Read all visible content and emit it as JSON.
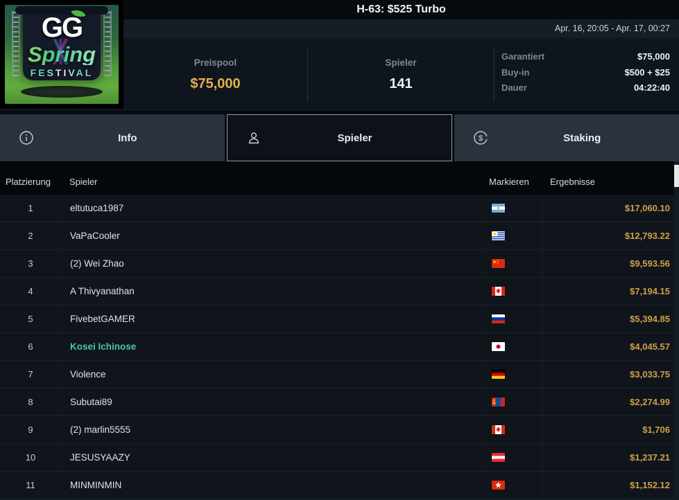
{
  "header": {
    "title": "H-63: $525 Turbo",
    "date_range": "Apr. 16, 20:05 - Apr. 17, 00:27"
  },
  "logo": {
    "line1": "GG",
    "line2": "Spring",
    "line3": "FESTIVAL",
    "leaf_icon": "leaf-icon"
  },
  "stats": {
    "prizepool": {
      "label": "Preispool",
      "value": "$75,000"
    },
    "players": {
      "label": "Spieler",
      "value": "141"
    },
    "details": [
      {
        "label": "Garantiert",
        "value": "$75,000"
      },
      {
        "label": "Buy-in",
        "value": "$500 + $25"
      },
      {
        "label": "Dauer",
        "value": "04:22:40"
      }
    ]
  },
  "tabs": [
    {
      "label": "Info",
      "icon": "info-icon",
      "active": false
    },
    {
      "label": "Spieler",
      "icon": "person-icon",
      "active": true
    },
    {
      "label": "Staking",
      "icon": "dollar-circle-icon",
      "active": false
    }
  ],
  "table": {
    "columns": {
      "rank": "Platzierung",
      "player": "Spieler",
      "mark": "Markieren",
      "result": "Ergebnisse"
    },
    "rows": [
      {
        "rank": "1",
        "player": "eltutuca1987",
        "flag": "argentina",
        "result": "$17,060.10",
        "hero": false
      },
      {
        "rank": "2",
        "player": "VaPaCooler",
        "flag": "uruguay",
        "result": "$12,793.22",
        "hero": false
      },
      {
        "rank": "3",
        "player": "(2) Wei Zhao",
        "flag": "china",
        "result": "$9,593.56",
        "hero": false
      },
      {
        "rank": "4",
        "player": "A Thivyanathan",
        "flag": "canada",
        "result": "$7,194.15",
        "hero": false
      },
      {
        "rank": "5",
        "player": "FivebetGAMER",
        "flag": "russia",
        "result": "$5,394.85",
        "hero": false
      },
      {
        "rank": "6",
        "player": "Kosei Ichinose",
        "flag": "japan",
        "result": "$4,045.57",
        "hero": true
      },
      {
        "rank": "7",
        "player": "Violence",
        "flag": "germany",
        "result": "$3,033.75",
        "hero": false
      },
      {
        "rank": "8",
        "player": "Subutai89",
        "flag": "mongolia",
        "result": "$2,274.99",
        "hero": false
      },
      {
        "rank": "9",
        "player": "(2) marlin5555",
        "flag": "canada",
        "result": "$1,706",
        "hero": false
      },
      {
        "rank": "10",
        "player": "JESUSYAAZY",
        "flag": "austria",
        "result": "$1,237.21",
        "hero": false
      },
      {
        "rank": "11",
        "player": "MINMINMIN",
        "flag": "hongkong",
        "result": "$1,152.12",
        "hero": false
      }
    ]
  },
  "colors": {
    "accent_gold": "#e3b04b",
    "result_gold": "#cfa148",
    "hero_teal": "#4fc2b2",
    "tab_bg": "#2a323d",
    "row_bg": "#10151c"
  }
}
